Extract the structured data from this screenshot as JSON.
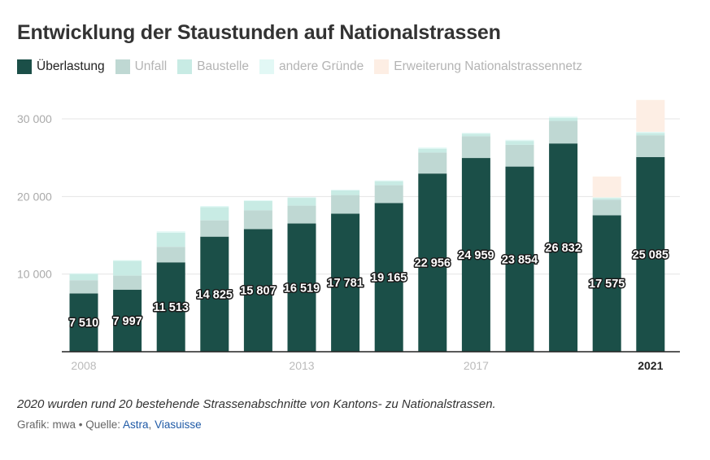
{
  "title": "Entwicklung der Staustunden auf Nationalstrassen",
  "note": "2020 wurden rund 20 bestehende Strassenabschnitte von Kantons- zu Nationalstrassen.",
  "credit": {
    "prefix": "Grafik: mwa • Quelle: ",
    "source_1": "Astra",
    "separator": ", ",
    "source_2": "Viasuisse"
  },
  "chart_data": {
    "type": "bar",
    "stacked": true,
    "title": "Entwicklung der Staustunden auf Nationalstrassen",
    "x": [
      2008,
      2009,
      2010,
      2011,
      2012,
      2013,
      2014,
      2015,
      2016,
      2017,
      2018,
      2019,
      2020,
      2021
    ],
    "x_tick_labels": [
      {
        "year": 2008,
        "label": "2008",
        "bold": false
      },
      {
        "year": 2013,
        "label": "2013",
        "bold": false
      },
      {
        "year": 2017,
        "label": "2017",
        "bold": false
      },
      {
        "year": 2021,
        "label": "2021",
        "bold": true
      }
    ],
    "ylim": [
      0,
      32500
    ],
    "y_ticks": [
      {
        "value": 10000,
        "label": "10 000"
      },
      {
        "value": 20000,
        "label": "20 000"
      },
      {
        "value": 30000,
        "label": "30 000"
      }
    ],
    "grid": true,
    "legend_position": "top-left",
    "series": [
      {
        "name": "Überlastung",
        "color": "#1b4f48",
        "active": true,
        "values": [
          7510,
          7997,
          11513,
          14825,
          15807,
          16519,
          17781,
          19165,
          22956,
          24959,
          23854,
          26832,
          17575,
          25085
        ],
        "labels": [
          "7 510",
          "7 997",
          "11 513",
          "14 825",
          "15 807",
          "16 519",
          "17 781",
          "19 165",
          "22 956",
          "24 959",
          "23 854",
          "26 832",
          "17 575",
          "25 085"
        ]
      },
      {
        "name": "Unfall",
        "color": "#bfd8d3",
        "active": false,
        "values": [
          1700,
          1800,
          2000,
          2100,
          2400,
          2300,
          2400,
          2300,
          2700,
          2800,
          2800,
          2900,
          2000,
          2800
        ]
      },
      {
        "name": "Baustelle",
        "color": "#c8ebe4",
        "active": false,
        "values": [
          800,
          1900,
          1800,
          1700,
          1200,
          1000,
          600,
          500,
          500,
          300,
          500,
          400,
          200,
          300
        ]
      },
      {
        "name": "andere Gründe",
        "color": "#e2f8f5",
        "active": false,
        "values": [
          100,
          100,
          200,
          150,
          100,
          100,
          100,
          100,
          150,
          150,
          150,
          150,
          100,
          150
        ]
      },
      {
        "name": "Erweiterung Nationalstrassennetz",
        "color": "#fdeee4",
        "active": false,
        "values": [
          0,
          0,
          0,
          0,
          0,
          0,
          0,
          0,
          0,
          0,
          0,
          0,
          2700,
          4100
        ]
      }
    ]
  }
}
